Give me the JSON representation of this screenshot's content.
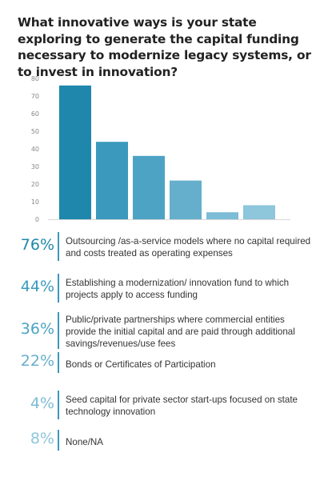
{
  "title": "What innovative ways is your state exploring to generate the capital funding necessary to modernize legacy systems, or to invest in innovation?",
  "chart_data": {
    "type": "bar",
    "title": "What innovative ways is your state exploring to generate the capital funding necessary to modernize legacy systems, or to invest in innovation?",
    "categories": [
      "Outsourcing /as-a-service models where no capital required and costs treated as operating expenses",
      "Establishing a modernization/ innovation fund to which projects apply to access funding",
      "Public/private partnerships where commercial entities provide the initial capital and are paid through additional savings/revenues/use fees",
      "Bonds or Certificates of Participation",
      "Seed capital for private sector start-ups focused on state technology innovation",
      "None/NA"
    ],
    "values": [
      76,
      44,
      36,
      22,
      4,
      8
    ],
    "ylim": [
      0,
      80
    ],
    "yticks": [
      0,
      10,
      20,
      30,
      40,
      50,
      60,
      70,
      80
    ],
    "grid": false,
    "colors": [
      "#1f87ab",
      "#3a99bd",
      "#4da3c4",
      "#66afcc",
      "#7dbcd6",
      "#8ec6dc"
    ]
  },
  "rows": [
    {
      "pct": "76%",
      "text": "Outsourcing /as-a-service models where no capital required and costs treated as operating expenses",
      "color": "#1f87ab"
    },
    {
      "pct": "44%",
      "text": "Establishing a modernization/ innovation fund to which projects apply to access funding",
      "color": "#3a99bd"
    },
    {
      "pct": "36%",
      "text": "Public/private partnerships where commercial entities provide the initial capital and are paid through additional savings/revenues/use fees",
      "color": "#4da3c4"
    },
    {
      "pct": "22%",
      "text": "Bonds or Certificates of Participation",
      "color": "#66afcc"
    },
    {
      "pct": "4%",
      "text": "Seed capital for private sector start-ups focused on state technology innovation",
      "color": "#7dbcd6"
    },
    {
      "pct": "8%",
      "text": "None/NA",
      "color": "#8ec6dc"
    }
  ]
}
